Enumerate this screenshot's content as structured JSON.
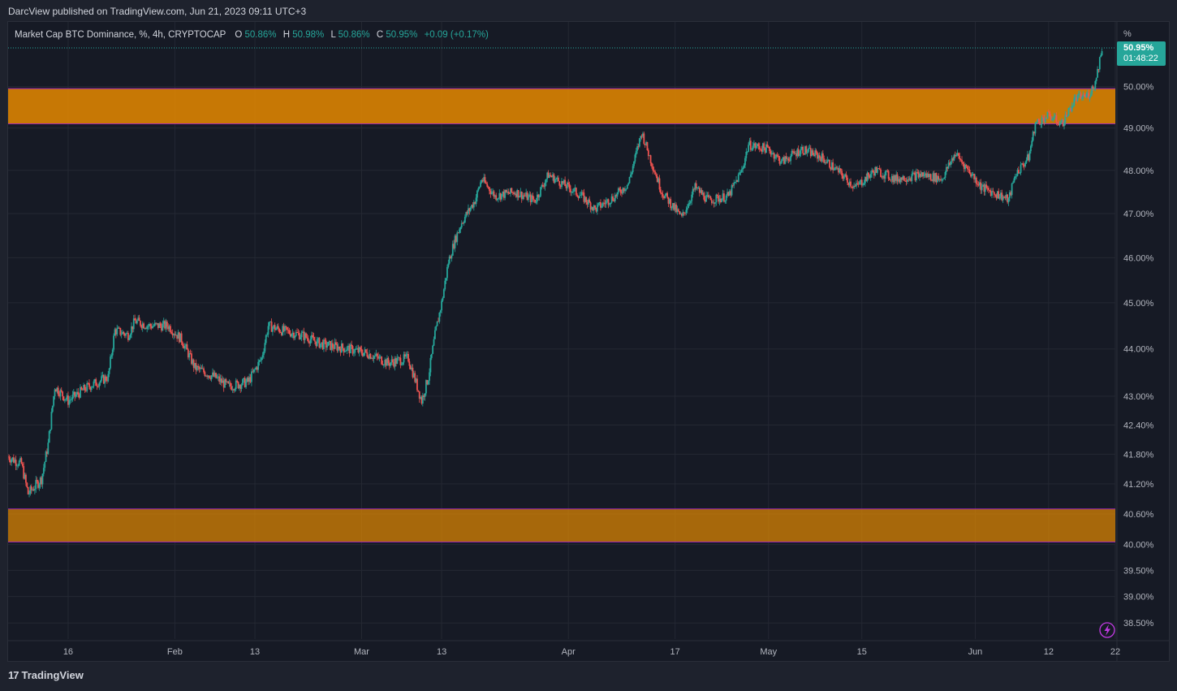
{
  "header": {
    "published_by": "DarcView published on TradingView.com, Jun 21, 2023 09:11 UTC+3"
  },
  "legend": {
    "symbol": "Market Cap BTC Dominance, %, 4h, CRYPTOCAP",
    "o_label": "O",
    "o_value": "50.86%",
    "h_label": "H",
    "h_value": "50.98%",
    "l_label": "L",
    "l_value": "50.86%",
    "c_label": "C",
    "c_value": "50.95%",
    "change": "+0.09 (+0.17%)"
  },
  "footer": {
    "brand": "TradingView",
    "brand_mark": "17"
  },
  "price_tag": {
    "value": "50.95%",
    "countdown": "01:48:22"
  },
  "chart_data": {
    "type": "line",
    "instrument": "Market Cap BTC Dominance",
    "unit": "%",
    "interval": "4h",
    "colors": {
      "up": "#26a69a",
      "down": "#ef5350",
      "zone": "#e68a00",
      "background": "#161a25",
      "price_tag": "#26a69a"
    },
    "y_scale": "log",
    "ylim": [
      38.2,
      51.6
    ],
    "y_tick_unit_label": "%",
    "y_ticks": [
      {
        "value": 50.0,
        "label": "50.00%"
      },
      {
        "value": 49.0,
        "label": "49.00%"
      },
      {
        "value": 48.0,
        "label": "48.00%"
      },
      {
        "value": 47.0,
        "label": "47.00%"
      },
      {
        "value": 46.0,
        "label": "46.00%"
      },
      {
        "value": 45.0,
        "label": "45.00%"
      },
      {
        "value": 44.0,
        "label": "44.00%"
      },
      {
        "value": 43.0,
        "label": "43.00%"
      },
      {
        "value": 42.4,
        "label": "42.40%"
      },
      {
        "value": 41.8,
        "label": "41.80%"
      },
      {
        "value": 41.2,
        "label": "41.20%"
      },
      {
        "value": 40.6,
        "label": "40.60%"
      },
      {
        "value": 40.0,
        "label": "40.00%"
      },
      {
        "value": 39.5,
        "label": "39.50%"
      },
      {
        "value": 39.0,
        "label": "39.00%"
      },
      {
        "value": 38.5,
        "label": "38.50%"
      }
    ],
    "x_range": [
      "2023-01-07",
      "2023-06-22"
    ],
    "x_ticks": [
      {
        "date": "2023-01-16",
        "label": "16"
      },
      {
        "date": "2023-02-01",
        "label": "Feb"
      },
      {
        "date": "2023-02-13",
        "label": "13"
      },
      {
        "date": "2023-03-01",
        "label": "Mar"
      },
      {
        "date": "2023-03-13",
        "label": "13"
      },
      {
        "date": "2023-04-01",
        "label": "Apr"
      },
      {
        "date": "2023-04-17",
        "label": "17"
      },
      {
        "date": "2023-05-01",
        "label": "May"
      },
      {
        "date": "2023-05-15",
        "label": "15"
      },
      {
        "date": "2023-06-01",
        "label": "Jun"
      },
      {
        "date": "2023-06-12",
        "label": "12"
      },
      {
        "date": "2023-06-22",
        "label": "22"
      }
    ],
    "series": [
      {
        "points": [
          {
            "date": "2023-01-07",
            "value": 41.75
          },
          {
            "date": "2023-01-09",
            "value": 41.6
          },
          {
            "date": "2023-01-10",
            "value": 41.0
          },
          {
            "date": "2023-01-12",
            "value": 41.3
          },
          {
            "date": "2023-01-13",
            "value": 42.0
          },
          {
            "date": "2023-01-14",
            "value": 43.2
          },
          {
            "date": "2023-01-16",
            "value": 42.9
          },
          {
            "date": "2023-01-19",
            "value": 43.2
          },
          {
            "date": "2023-01-22",
            "value": 43.4
          },
          {
            "date": "2023-01-23",
            "value": 44.4
          },
          {
            "date": "2023-01-25",
            "value": 44.3
          },
          {
            "date": "2023-01-26",
            "value": 44.6
          },
          {
            "date": "2023-01-28",
            "value": 44.5
          },
          {
            "date": "2023-01-31",
            "value": 44.5
          },
          {
            "date": "2023-02-02",
            "value": 44.2
          },
          {
            "date": "2023-02-04",
            "value": 43.6
          },
          {
            "date": "2023-02-07",
            "value": 43.4
          },
          {
            "date": "2023-02-09",
            "value": 43.2
          },
          {
            "date": "2023-02-12",
            "value": 43.3
          },
          {
            "date": "2023-02-14",
            "value": 43.8
          },
          {
            "date": "2023-02-15",
            "value": 44.5
          },
          {
            "date": "2023-02-17",
            "value": 44.4
          },
          {
            "date": "2023-02-20",
            "value": 44.3
          },
          {
            "date": "2023-02-23",
            "value": 44.1
          },
          {
            "date": "2023-02-27",
            "value": 44.0
          },
          {
            "date": "2023-03-02",
            "value": 43.9
          },
          {
            "date": "2023-03-05",
            "value": 43.7
          },
          {
            "date": "2023-03-08",
            "value": 43.8
          },
          {
            "date": "2023-03-10",
            "value": 42.9
          },
          {
            "date": "2023-03-11",
            "value": 43.4
          },
          {
            "date": "2023-03-12",
            "value": 44.3
          },
          {
            "date": "2023-03-13",
            "value": 45.0
          },
          {
            "date": "2023-03-14",
            "value": 45.9
          },
          {
            "date": "2023-03-15",
            "value": 46.4
          },
          {
            "date": "2023-03-16",
            "value": 46.8
          },
          {
            "date": "2023-03-18",
            "value": 47.3
          },
          {
            "date": "2023-03-19",
            "value": 47.8
          },
          {
            "date": "2023-03-21",
            "value": 47.4
          },
          {
            "date": "2023-03-24",
            "value": 47.5
          },
          {
            "date": "2023-03-27",
            "value": 47.3
          },
          {
            "date": "2023-03-29",
            "value": 47.9
          },
          {
            "date": "2023-04-01",
            "value": 47.6
          },
          {
            "date": "2023-04-03",
            "value": 47.4
          },
          {
            "date": "2023-04-05",
            "value": 47.1
          },
          {
            "date": "2023-04-08",
            "value": 47.4
          },
          {
            "date": "2023-04-10",
            "value": 47.7
          },
          {
            "date": "2023-04-12",
            "value": 48.9
          },
          {
            "date": "2023-04-13",
            "value": 48.4
          },
          {
            "date": "2023-04-15",
            "value": 47.5
          },
          {
            "date": "2023-04-17",
            "value": 47.1
          },
          {
            "date": "2023-04-18",
            "value": 46.9
          },
          {
            "date": "2023-04-20",
            "value": 47.6
          },
          {
            "date": "2023-04-22",
            "value": 47.3
          },
          {
            "date": "2023-04-25",
            "value": 47.4
          },
          {
            "date": "2023-04-27",
            "value": 48.0
          },
          {
            "date": "2023-04-28",
            "value": 48.6
          },
          {
            "date": "2023-05-01",
            "value": 48.5
          },
          {
            "date": "2023-05-03",
            "value": 48.2
          },
          {
            "date": "2023-05-06",
            "value": 48.5
          },
          {
            "date": "2023-05-09",
            "value": 48.3
          },
          {
            "date": "2023-05-12",
            "value": 47.9
          },
          {
            "date": "2023-05-14",
            "value": 47.6
          },
          {
            "date": "2023-05-17",
            "value": 48.0
          },
          {
            "date": "2023-05-20",
            "value": 47.8
          },
          {
            "date": "2023-05-24",
            "value": 47.9
          },
          {
            "date": "2023-05-27",
            "value": 47.8
          },
          {
            "date": "2023-05-29",
            "value": 48.4
          },
          {
            "date": "2023-05-31",
            "value": 48.0
          },
          {
            "date": "2023-06-02",
            "value": 47.6
          },
          {
            "date": "2023-06-05",
            "value": 47.4
          },
          {
            "date": "2023-06-06",
            "value": 47.3
          },
          {
            "date": "2023-06-07",
            "value": 47.9
          },
          {
            "date": "2023-06-09",
            "value": 48.3
          },
          {
            "date": "2023-06-10",
            "value": 49.1
          },
          {
            "date": "2023-06-12",
            "value": 49.3
          },
          {
            "date": "2023-06-14",
            "value": 49.1
          },
          {
            "date": "2023-06-16",
            "value": 49.7
          },
          {
            "date": "2023-06-18",
            "value": 49.8
          },
          {
            "date": "2023-06-19",
            "value": 50.1
          },
          {
            "date": "2023-06-20",
            "value": 50.95
          }
        ]
      }
    ],
    "zones": [
      {
        "from": 49.1,
        "to": 49.95
      },
      {
        "from": 40.05,
        "to": 40.7
      }
    ],
    "last_value": 50.95,
    "grid": true
  }
}
